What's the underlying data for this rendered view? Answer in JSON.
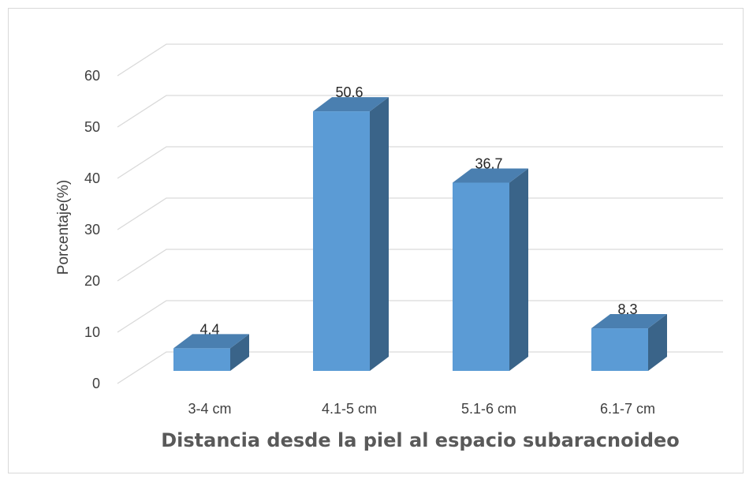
{
  "chart_data": {
    "type": "bar",
    "categories": [
      "3-4 cm",
      "4.1-5 cm",
      "5.1-6 cm",
      "6.1-7 cm"
    ],
    "values": [
      4.4,
      50.6,
      36.7,
      8.3
    ],
    "data_labels": [
      "4.4",
      "50.6",
      "36.7",
      "8.3"
    ],
    "title": "",
    "xlabel": "Distancia desde la piel al espacio subaracnoideo",
    "ylabel": "Porcentaje(%)",
    "ylim": [
      0,
      60
    ],
    "y_ticks": [
      "0",
      "10",
      "20",
      "30",
      "40",
      "50",
      "60"
    ],
    "grid": true,
    "style": "3d-column",
    "colors": {
      "front": "#5b9bd5",
      "side": "#3a6489",
      "top": "#4a7fb0",
      "grid": "#d9d9d9"
    }
  }
}
